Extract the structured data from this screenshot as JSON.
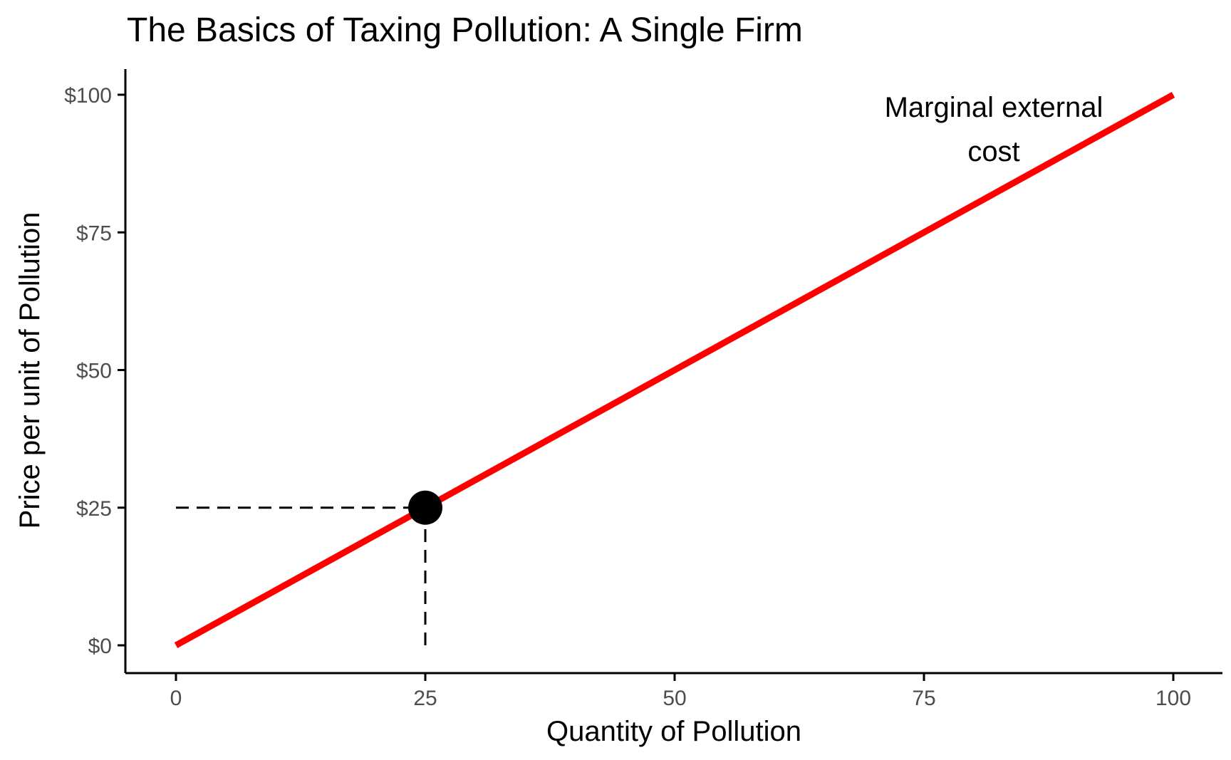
{
  "chart_data": {
    "type": "line",
    "title": "The Basics of Taxing Pollution: A Single Firm",
    "xlabel": "Quantity of Pollution",
    "ylabel": "Price per unit of Pollution",
    "xlim": [
      0,
      100
    ],
    "ylim": [
      0,
      100
    ],
    "x_ticks": [
      0,
      25,
      50,
      75,
      100
    ],
    "x_tick_labels": [
      "0",
      "25",
      "50",
      "75",
      "100"
    ],
    "y_ticks": [
      0,
      25,
      50,
      75,
      100
    ],
    "y_tick_labels": [
      "$0",
      "$25",
      "$50",
      "$75",
      "$100"
    ],
    "grid": false,
    "series": [
      {
        "name": "Marginal external cost",
        "color": "#ff0000",
        "x": [
          0,
          100
        ],
        "y": [
          0,
          100
        ]
      }
    ],
    "annotations": [
      {
        "lines": [
          "Marginal external",
          "cost"
        ],
        "x": 82,
        "y": 96
      }
    ],
    "highlight_point": {
      "x": 25,
      "y": 25,
      "color": "#000000"
    }
  }
}
